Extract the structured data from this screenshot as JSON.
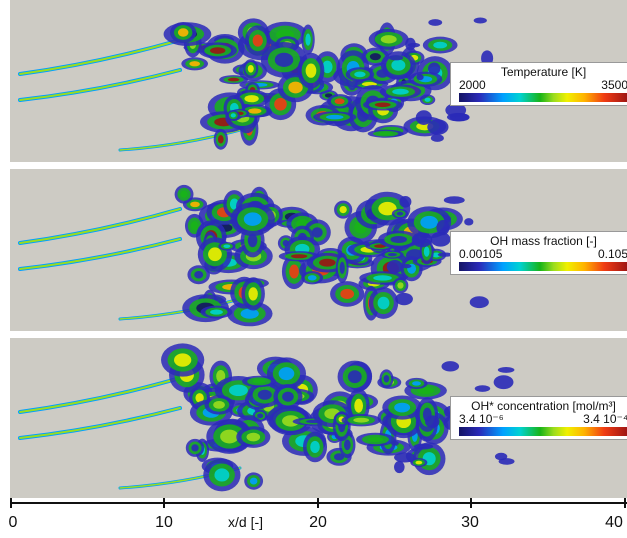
{
  "panels": [
    {
      "legend_title": "Temperature  [K]",
      "min_label": "2000",
      "max_label": "3500"
    },
    {
      "legend_title": "OH mass fraction [-]",
      "min_label": "0.00105",
      "max_label": "0.105"
    },
    {
      "legend_title": "OH* concentration  [mol/m³]",
      "min_label": "3.4 10⁻⁶",
      "max_label": "3.4 10⁻⁴"
    }
  ],
  "axis": {
    "label": "x/d [-]",
    "ticks": [
      "0",
      "10",
      "20",
      "30",
      "40"
    ]
  },
  "colors": {
    "background": "#cdcbc4",
    "colormap": [
      "#141464",
      "#2a2ab8",
      "#00a0ff",
      "#00d2d2",
      "#18b418",
      "#9bdc1e",
      "#f0f000",
      "#ffb400",
      "#f03c14",
      "#9c1414"
    ]
  }
}
